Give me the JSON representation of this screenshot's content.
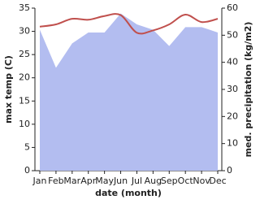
{
  "chart_data": {
    "type": "line",
    "x_label": "date (month)",
    "y_label": "max temp (C)",
    "y2_label": "med. precipitation (kg/m2)",
    "categories": [
      "Jan",
      "Feb",
      "Mar",
      "Apr",
      "May",
      "Jun",
      "Jul",
      "Aug",
      "Sep",
      "Oct",
      "Nov",
      "Dec"
    ],
    "series": [
      {
        "name": "med. precipitation",
        "type": "area",
        "axis": "y2",
        "color": "#b3bdf0",
        "values": [
          52,
          38,
          47,
          51,
          51,
          58,
          54,
          52,
          46,
          53,
          53,
          51
        ]
      },
      {
        "name": "max temp",
        "type": "line",
        "color": "#c0504d",
        "values": [
          31,
          31.5,
          32.7,
          32.5,
          33.3,
          33.5,
          29.7,
          30.2,
          31.5,
          33.6,
          32,
          32.7
        ]
      }
    ],
    "ylim": [
      0,
      35
    ],
    "yticks": [
      0,
      5,
      10,
      15,
      20,
      25,
      30,
      35
    ],
    "y2lim": [
      0,
      60
    ],
    "y2ticks": [
      0,
      10,
      20,
      30,
      40,
      50,
      60
    ]
  }
}
